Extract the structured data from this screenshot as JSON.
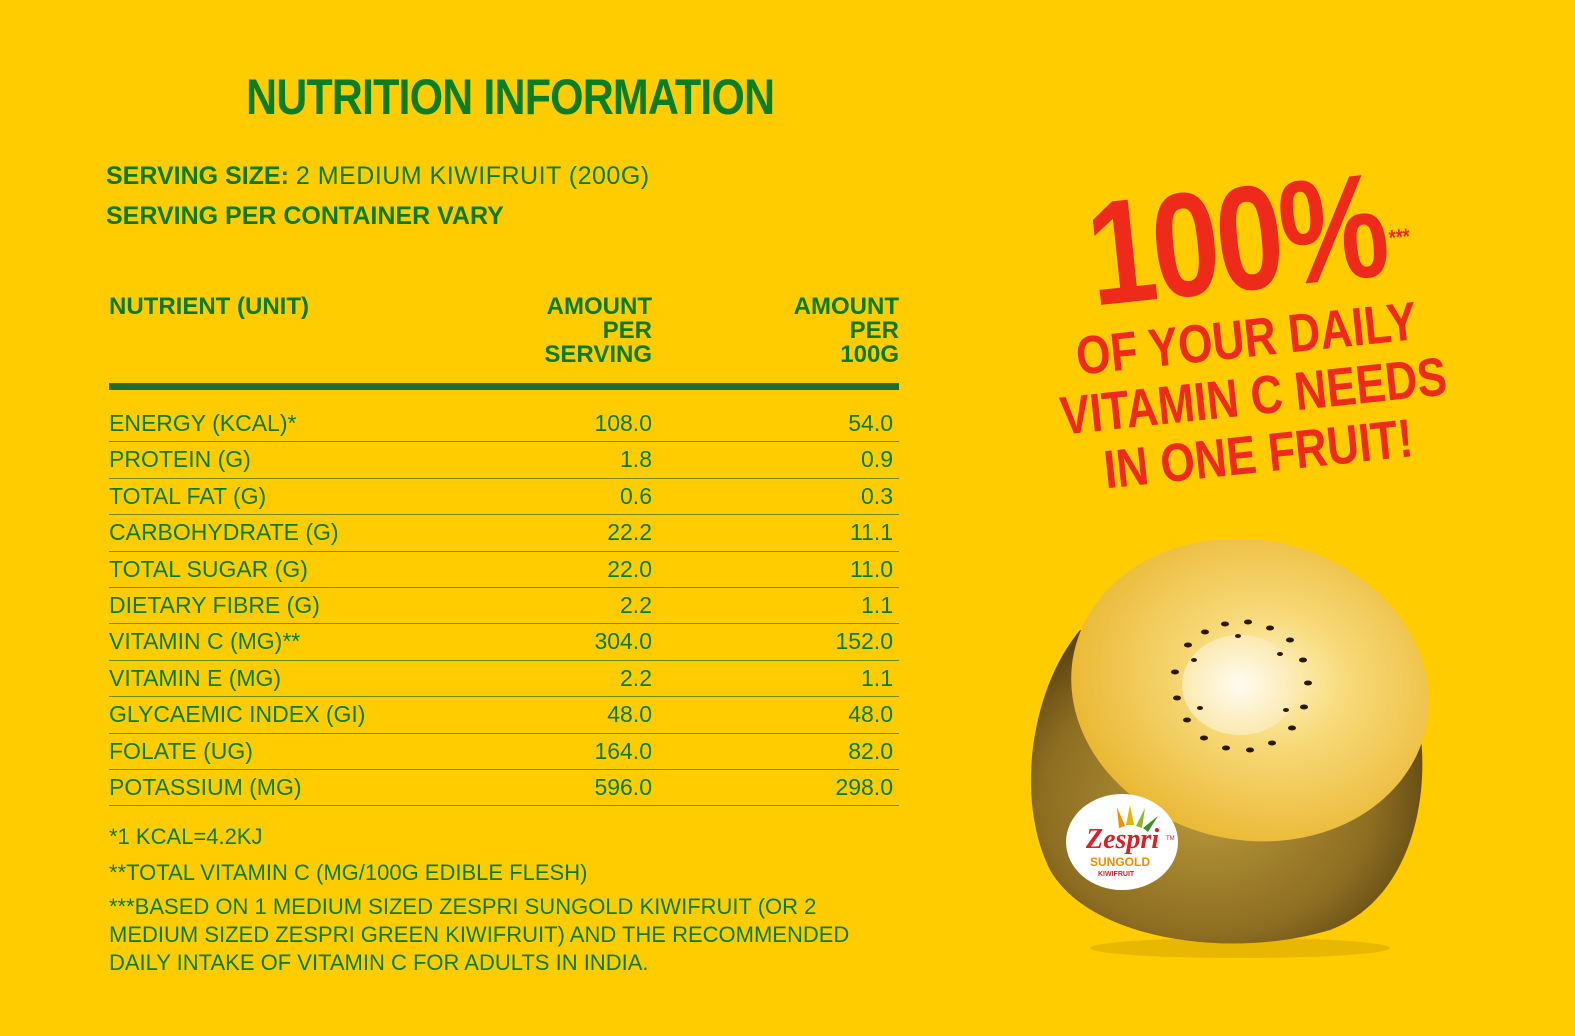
{
  "title": "NUTRITION INFORMATION",
  "serving": {
    "size_label": "SERVING SIZE:",
    "size_value": "2 MEDIUM KIWIFRUIT (200G)",
    "per_container": "SERVING PER CONTAINER VARY"
  },
  "table": {
    "headers": {
      "nutrient": "NUTRIENT (UNIT)",
      "per_serving": [
        "AMOUNT",
        "PER",
        "SERVING"
      ],
      "per_100g": [
        "AMOUNT",
        "PER",
        "100G"
      ]
    },
    "rows": [
      {
        "nutrient": "ENERGY (KCAL)*",
        "per_serving": "108.0",
        "per_100g": "54.0"
      },
      {
        "nutrient": "PROTEIN (G)",
        "per_serving": "1.8",
        "per_100g": "0.9"
      },
      {
        "nutrient": "TOTAL FAT (G)",
        "per_serving": "0.6",
        "per_100g": "0.3"
      },
      {
        "nutrient": "CARBOHYDRATE (G)",
        "per_serving": "22.2",
        "per_100g": "11.1"
      },
      {
        "nutrient": "TOTAL SUGAR (G)",
        "per_serving": "22.0",
        "per_100g": "11.0"
      },
      {
        "nutrient": "DIETARY FIBRE (G)",
        "per_serving": "2.2",
        "per_100g": "1.1"
      },
      {
        "nutrient": "VITAMIN C (MG)**",
        "per_serving": "304.0",
        "per_100g": "152.0"
      },
      {
        "nutrient": "VITAMIN E (MG)",
        "per_serving": "2.2",
        "per_100g": "1.1"
      },
      {
        "nutrient": "GLYCAEMIC INDEX (GI)",
        "per_serving": "48.0",
        "per_100g": "48.0"
      },
      {
        "nutrient": "FOLATE (UG)",
        "per_serving": "164.0",
        "per_100g": "82.0"
      },
      {
        "nutrient": "POTASSIUM (MG)",
        "per_serving": "596.0",
        "per_100g": "298.0"
      }
    ]
  },
  "footnotes": [
    "*1 KCAL=4.2KJ",
    "**TOTAL VITAMIN C  (MG/100G EDIBLE FLESH)",
    "***BASED ON 1 MEDIUM SIZED ZESPRI SUNGOLD KIWIFRUIT (OR 2 MEDIUM SIZED ZESPRI GREEN KIWIFRUIT) AND THE RECOMMENDED DAILY INTAKE OF VITAMIN C FOR ADULTS IN INDIA."
  ],
  "promo": {
    "percent": "100%",
    "mark": "***",
    "lines": [
      "OF YOUR DAILY",
      "VITAMIN C NEEDS",
      "IN ONE FRUIT!"
    ]
  },
  "sticker": {
    "brand": "Zespri",
    "trademark": "TM",
    "variety": "SUNGOLD",
    "sub": "KIWIFRUIT"
  },
  "colors": {
    "background": "#FFCC00",
    "text_green": "#0E7A1E",
    "promo_red": "#EE2A1B"
  }
}
